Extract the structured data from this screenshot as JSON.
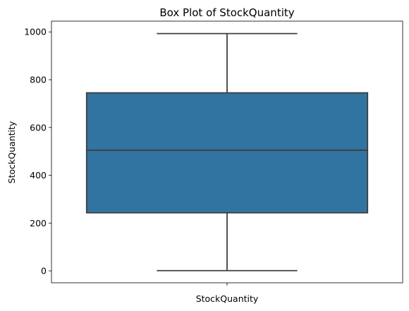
{
  "chart_data": {
    "type": "box",
    "title": "Box Plot of StockQuantity",
    "xlabel": "StockQuantity",
    "ylabel": "StockQuantity",
    "categories": [
      "StockQuantity"
    ],
    "ylim": [
      -50,
      1045
    ],
    "yticks": [
      0,
      200,
      400,
      600,
      800,
      1000
    ],
    "boxes": [
      {
        "min": 1,
        "q1": 243,
        "median": 505,
        "q3": 745,
        "max": 993
      }
    ],
    "grid": false,
    "colors": {
      "box": "#3274a1",
      "line": "#3f3f3f"
    }
  }
}
